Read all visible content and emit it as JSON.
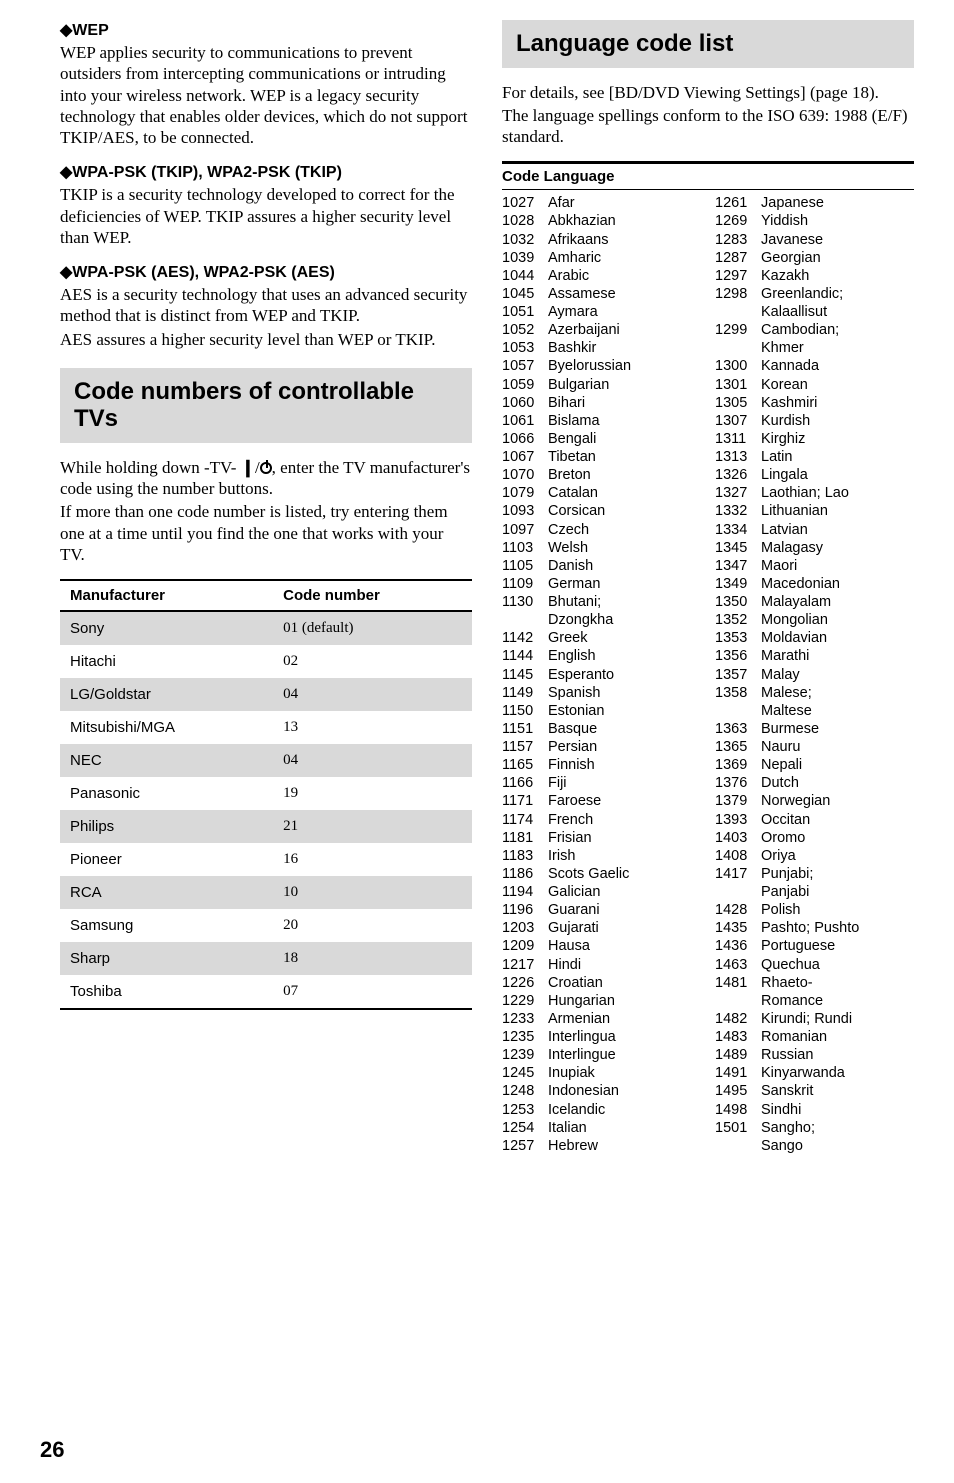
{
  "left": {
    "wep": {
      "title": "◆WEP",
      "body": "WEP applies security to communications to prevent outsiders from intercepting communications or intruding into your wireless network. WEP is a legacy security technology that enables older devices, which do not support TKIP/AES, to be connected."
    },
    "wpa_tkip": {
      "title": "◆WPA-PSK (TKIP), WPA2-PSK (TKIP)",
      "body": "TKIP is a security technology developed to correct for the deficiencies of WEP. TKIP assures a higher security level than WEP."
    },
    "wpa_aes": {
      "title": "◆WPA-PSK (AES), WPA2-PSK (AES)",
      "body1": "AES is a security technology that uses an advanced security method that is distinct from WEP and TKIP.",
      "body2": "AES assures a higher security level than WEP or TKIP."
    },
    "tv_section": {
      "title": "Code numbers of controllable TVs",
      "body1a": "While holding down -TV- ",
      "body1b": "/",
      "body1c": ", enter the TV manufacturer's code using the number buttons.",
      "body2": "If more than one code number is listed, try entering them one at a time until you find the one that works with your TV."
    },
    "mfr_table": {
      "headers": [
        "Manufacturer",
        "Code number"
      ],
      "rows": [
        [
          "Sony",
          "01 (default)"
        ],
        [
          "Hitachi",
          "02"
        ],
        [
          "LG/Goldstar",
          "04"
        ],
        [
          "Mitsubishi/MGA",
          "13"
        ],
        [
          "NEC",
          "04"
        ],
        [
          "Panasonic",
          "19"
        ],
        [
          "Philips",
          "21"
        ],
        [
          "Pioneer",
          "16"
        ],
        [
          "RCA",
          "10"
        ],
        [
          "Samsung",
          "20"
        ],
        [
          "Sharp",
          "18"
        ],
        [
          "Toshiba",
          "07"
        ]
      ]
    }
  },
  "right": {
    "section_title": "Language code list",
    "intro1": "For details, see [BD/DVD Viewing Settings] (page 18).",
    "intro2": "The language spellings conform to the ISO 639: 1988 (E/F) standard.",
    "table_head": "Code Language",
    "col1": [
      [
        "1027",
        "Afar"
      ],
      [
        "1028",
        "Abkhazian"
      ],
      [
        "1032",
        "Afrikaans"
      ],
      [
        "1039",
        "Amharic"
      ],
      [
        "1044",
        "Arabic"
      ],
      [
        "1045",
        "Assamese"
      ],
      [
        "1051",
        "Aymara"
      ],
      [
        "1052",
        "Azerbaijani"
      ],
      [
        "1053",
        "Bashkir"
      ],
      [
        "1057",
        "Byelorussian"
      ],
      [
        "1059",
        "Bulgarian"
      ],
      [
        "1060",
        "Bihari"
      ],
      [
        "1061",
        "Bislama"
      ],
      [
        "1066",
        "Bengali"
      ],
      [
        "1067",
        "Tibetan"
      ],
      [
        "1070",
        "Breton"
      ],
      [
        "1079",
        "Catalan"
      ],
      [
        "1093",
        "Corsican"
      ],
      [
        "1097",
        "Czech"
      ],
      [
        "1103",
        "Welsh"
      ],
      [
        "1105",
        "Danish"
      ],
      [
        "1109",
        "German"
      ],
      [
        "1130",
        "Bhutani;"
      ],
      [
        "",
        "Dzongkha"
      ],
      [
        "1142",
        "Greek"
      ],
      [
        "1144",
        "English"
      ],
      [
        "1145",
        "Esperanto"
      ],
      [
        "1149",
        "Spanish"
      ],
      [
        "1150",
        "Estonian"
      ],
      [
        "1151",
        "Basque"
      ],
      [
        "1157",
        "Persian"
      ],
      [
        "1165",
        "Finnish"
      ],
      [
        "1166",
        "Fiji"
      ],
      [
        "1171",
        "Faroese"
      ],
      [
        "1174",
        "French"
      ],
      [
        "1181",
        "Frisian"
      ],
      [
        "1183",
        "Irish"
      ],
      [
        "1186",
        "Scots Gaelic"
      ],
      [
        "1194",
        "Galician"
      ],
      [
        "1196",
        "Guarani"
      ],
      [
        "1203",
        "Gujarati"
      ],
      [
        "1209",
        "Hausa"
      ],
      [
        "1217",
        "Hindi"
      ],
      [
        "1226",
        "Croatian"
      ],
      [
        "1229",
        "Hungarian"
      ],
      [
        "1233",
        "Armenian"
      ],
      [
        "1235",
        "Interlingua"
      ],
      [
        "1239",
        "Interlingue"
      ],
      [
        "1245",
        "Inupiak"
      ],
      [
        "1248",
        "Indonesian"
      ],
      [
        "1253",
        "Icelandic"
      ],
      [
        "1254",
        "Italian"
      ],
      [
        "1257",
        "Hebrew"
      ]
    ],
    "col2": [
      [
        "1261",
        "Japanese"
      ],
      [
        "1269",
        "Yiddish"
      ],
      [
        "1283",
        "Javanese"
      ],
      [
        "1287",
        "Georgian"
      ],
      [
        "1297",
        "Kazakh"
      ],
      [
        "1298",
        "Greenlandic;"
      ],
      [
        "",
        "Kalaallisut"
      ],
      [
        "1299",
        "Cambodian;"
      ],
      [
        "",
        "Khmer"
      ],
      [
        "1300",
        "Kannada"
      ],
      [
        "1301",
        "Korean"
      ],
      [
        "1305",
        "Kashmiri"
      ],
      [
        "1307",
        "Kurdish"
      ],
      [
        "1311",
        "Kirghiz"
      ],
      [
        "1313",
        "Latin"
      ],
      [
        "1326",
        "Lingala"
      ],
      [
        "1327",
        "Laothian; Lao"
      ],
      [
        "1332",
        "Lithuanian"
      ],
      [
        "1334",
        "Latvian"
      ],
      [
        "1345",
        "Malagasy"
      ],
      [
        "1347",
        "Maori"
      ],
      [
        "1349",
        "Macedonian"
      ],
      [
        "1350",
        "Malayalam"
      ],
      [
        "1352",
        "Mongolian"
      ],
      [
        "1353",
        "Moldavian"
      ],
      [
        "1356",
        "Marathi"
      ],
      [
        "1357",
        "Malay"
      ],
      [
        "1358",
        "Malese;"
      ],
      [
        "",
        "Maltese"
      ],
      [
        "1363",
        "Burmese"
      ],
      [
        "1365",
        "Nauru"
      ],
      [
        "1369",
        "Nepali"
      ],
      [
        "1376",
        "Dutch"
      ],
      [
        "1379",
        "Norwegian"
      ],
      [
        "1393",
        "Occitan"
      ],
      [
        "1403",
        "Oromo"
      ],
      [
        "1408",
        "Oriya"
      ],
      [
        "1417",
        "Punjabi;"
      ],
      [
        "",
        "Panjabi"
      ],
      [
        "1428",
        "Polish"
      ],
      [
        "1435",
        "Pashto; Pushto"
      ],
      [
        "1436",
        "Portuguese"
      ],
      [
        "1463",
        "Quechua"
      ],
      [
        "1481",
        "Rhaeto-"
      ],
      [
        "",
        "Romance"
      ],
      [
        "1482",
        "Kirundi; Rundi"
      ],
      [
        "1483",
        "Romanian"
      ],
      [
        "1489",
        "Russian"
      ],
      [
        "1491",
        "Kinyarwanda"
      ],
      [
        "1495",
        "Sanskrit"
      ],
      [
        "1498",
        "Sindhi"
      ],
      [
        "1501",
        "Sangho;"
      ],
      [
        "",
        "Sango"
      ]
    ]
  },
  "page_number": "26"
}
